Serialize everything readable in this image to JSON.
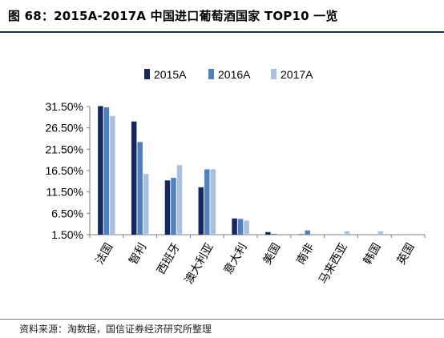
{
  "title": "图 68：2015A-2017A 中国进口葡萄酒国家 TOP10 一览",
  "source": "资料来源：淘数据，国信证券经济研究所整理",
  "chart_data": {
    "type": "bar",
    "title": "",
    "xlabel": "",
    "ylabel": "",
    "categories": [
      "法国",
      "智利",
      "西班牙",
      "澳大利亚",
      "意大利",
      "美国",
      "南非",
      "马来西亚",
      "韩国",
      "英国"
    ],
    "series": [
      {
        "name": "2015A",
        "color": "#17275e",
        "values": [
          31.6,
          28.0,
          14.2,
          12.6,
          5.3,
          2.1,
          1.6,
          0.0,
          0.0,
          0.0
        ]
      },
      {
        "name": "2016A",
        "color": "#4e80c2",
        "values": [
          31.3,
          23.2,
          14.8,
          16.8,
          5.2,
          1.7,
          2.5,
          0.0,
          0.0,
          0.0
        ]
      },
      {
        "name": "2017A",
        "color": "#a9bfe2",
        "values": [
          29.3,
          15.7,
          17.8,
          16.8,
          4.8,
          0.0,
          1.3,
          2.3,
          2.3,
          1.3
        ]
      }
    ],
    "yticks": [
      "31.50%",
      "26.50%",
      "21.50%",
      "16.50%",
      "11.50%",
      "6.50%",
      "1.50%"
    ],
    "ylim": [
      1.5,
      31.5
    ],
    "grid": false,
    "legend": "top"
  }
}
